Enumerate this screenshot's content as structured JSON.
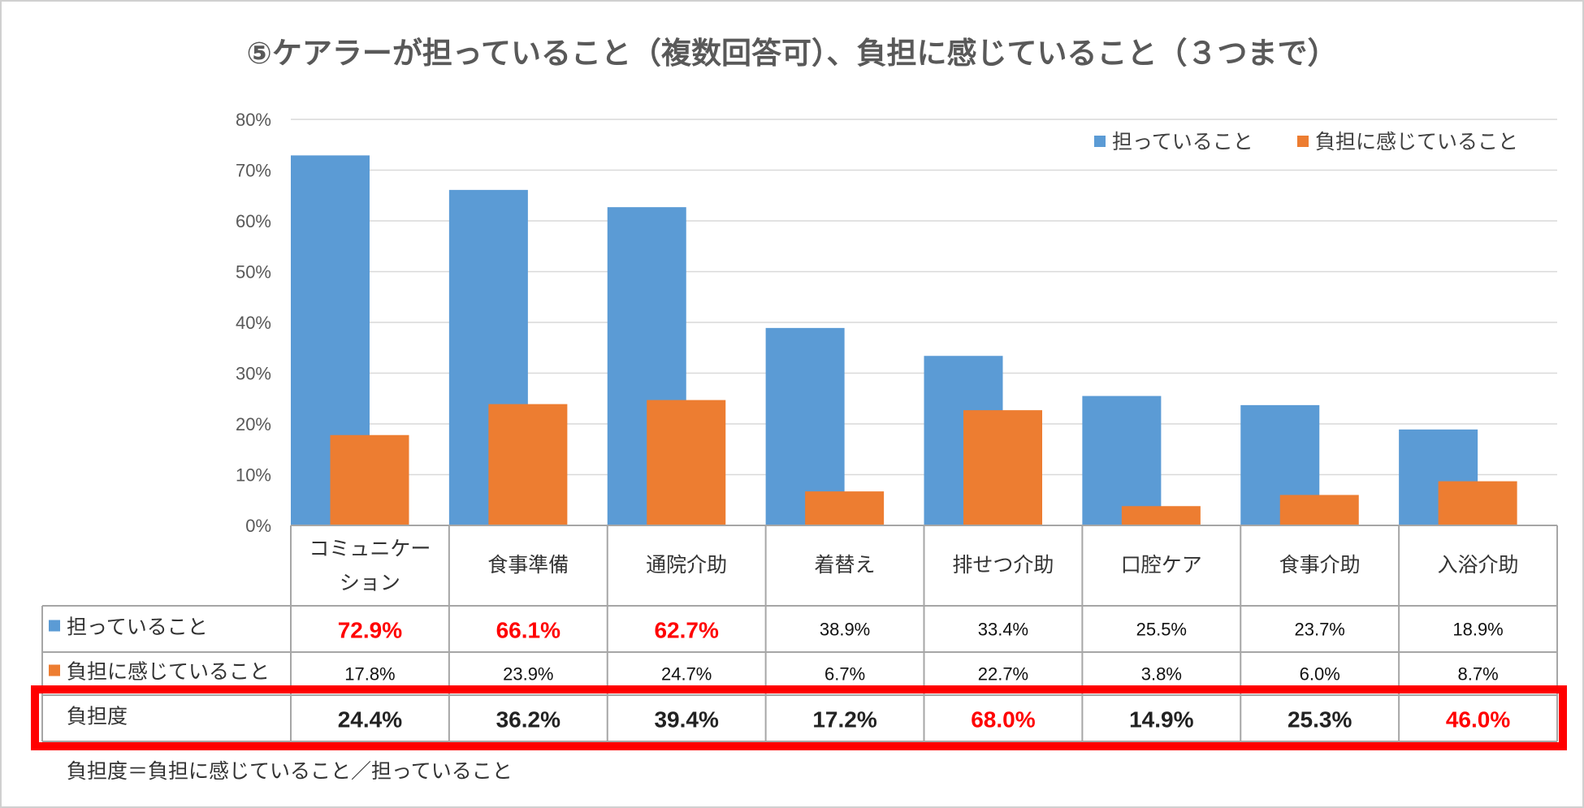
{
  "title": "⑤ケアラーが担っていること（複数回答可）、負担に感じていること（３つまで）",
  "colors": {
    "series1": "#5B9BD5",
    "series2": "#ED7D31",
    "highlight": "#FF0000",
    "grid": "#D9D9D9",
    "axis_text": "#595959"
  },
  "chart_data": {
    "type": "bar",
    "categories": [
      "コミュニケーション",
      "食事準備",
      "通院介助",
      "着替え",
      "排せつ介助",
      "口腔ケア",
      "食事介助",
      "入浴介助"
    ],
    "category_lines": [
      [
        "コミュニケー",
        "ション"
      ],
      [
        "食事準備"
      ],
      [
        "通院介助"
      ],
      [
        "着替え"
      ],
      [
        "排せつ介助"
      ],
      [
        "口腔ケア"
      ],
      [
        "食事介助"
      ],
      [
        "入浴介助"
      ]
    ],
    "series": [
      {
        "name": "担っていること",
        "values": [
          72.9,
          66.1,
          62.7,
          38.9,
          33.4,
          25.5,
          23.7,
          18.9
        ]
      },
      {
        "name": "負担に感じていること",
        "values": [
          17.8,
          23.9,
          24.7,
          6.7,
          22.7,
          3.8,
          6.0,
          8.7
        ]
      }
    ],
    "ylim": [
      0,
      80
    ],
    "yticks": [
      "0%",
      "10%",
      "20%",
      "30%",
      "40%",
      "50%",
      "60%",
      "70%",
      "80%"
    ],
    "grid": true,
    "legend_position": "top-right"
  },
  "table": {
    "rows": [
      {
        "label": "担っていること",
        "marker": "series1",
        "cells": [
          "72.9%",
          "66.1%",
          "62.7%",
          "38.9%",
          "33.4%",
          "25.5%",
          "23.7%",
          "18.9%"
        ],
        "highlight": [
          true,
          true,
          true,
          false,
          false,
          false,
          false,
          false
        ],
        "emphasis": false
      },
      {
        "label": "負担に感じていること",
        "marker": "series2",
        "cells": [
          "17.8%",
          "23.9%",
          "24.7%",
          "6.7%",
          "22.7%",
          "3.8%",
          "6.0%",
          "8.7%"
        ],
        "highlight": [
          false,
          false,
          false,
          false,
          false,
          false,
          false,
          false
        ],
        "emphasis": false
      },
      {
        "label": "負担度",
        "marker": "",
        "cells": [
          "24.4%",
          "36.2%",
          "39.4%",
          "17.2%",
          "68.0%",
          "14.9%",
          "25.3%",
          "46.0%"
        ],
        "highlight": [
          false,
          false,
          false,
          false,
          true,
          false,
          false,
          true
        ],
        "emphasis": true
      }
    ]
  },
  "footnote": "負担度＝負担に感じていること／担っていること"
}
